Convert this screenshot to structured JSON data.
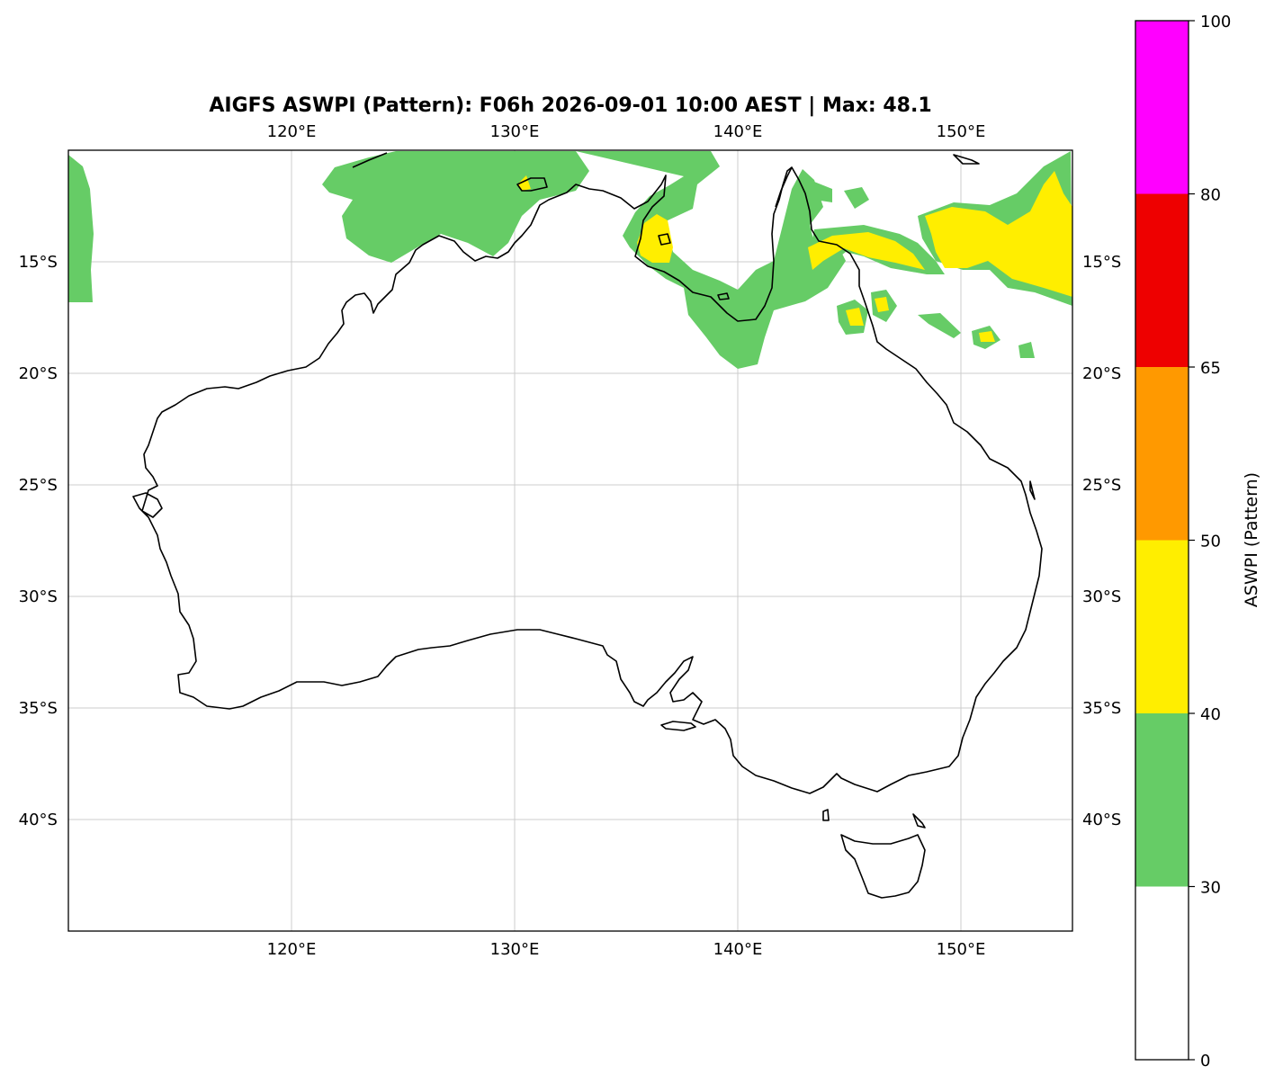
{
  "title": "AIGFS ASWPI (Pattern): F06h 2026-09-01 10:00 AEST | Max: 48.1",
  "map": {
    "lon_range": [
      110,
      155
    ],
    "lat_range": [
      -45,
      -10
    ],
    "lon_ticks": [
      {
        "value": 120,
        "label": "120°E"
      },
      {
        "value": 130,
        "label": "130°E"
      },
      {
        "value": 140,
        "label": "140°E"
      },
      {
        "value": 150,
        "label": "150°E"
      }
    ],
    "lat_ticks": [
      {
        "value": -15,
        "label": "15°S"
      },
      {
        "value": -20,
        "label": "20°S"
      },
      {
        "value": -25,
        "label": "25°S"
      },
      {
        "value": -30,
        "label": "30°S"
      },
      {
        "value": -35,
        "label": "35°S"
      },
      {
        "value": -40,
        "label": "40°S"
      }
    ],
    "gridlines": true,
    "field_colors": {
      "30-40": "#66cc66",
      "40-50": "#ffee00"
    },
    "coastline_color": "#000000"
  },
  "colorbar": {
    "label": "ASWPI (Pattern)",
    "levels": [
      0,
      30,
      40,
      50,
      65,
      80,
      100
    ],
    "tick_labels": [
      "0",
      "30",
      "40",
      "50",
      "65",
      "80",
      "100"
    ],
    "colors": [
      "#ffffff",
      "#66cc66",
      "#ffee00",
      "#ff9900",
      "#ee0000",
      "#ff00ff"
    ]
  }
}
